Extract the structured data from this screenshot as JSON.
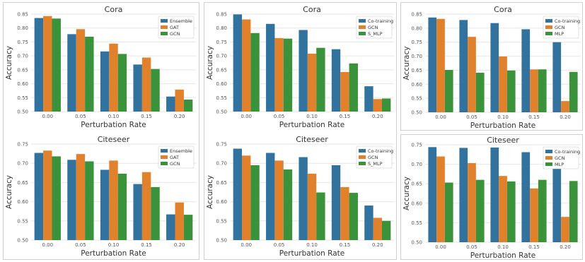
{
  "colors": {
    "blue": "#31729f",
    "orange": "#e1812c",
    "green": "#3a923a",
    "grid": "#e6e6e6",
    "axis": "#555555"
  },
  "chart_data": [
    {
      "type": "bar",
      "title": "Cora",
      "xlabel": "Perturbation Rate",
      "ylabel": "Accuracy",
      "categories": [
        "0.00",
        "0.05",
        "0.10",
        "0.15",
        "0.20"
      ],
      "ylim": [
        0.5,
        0.85
      ],
      "yticks": [
        "0.50",
        "0.55",
        "0.60",
        "0.65",
        "0.70",
        "0.75",
        "0.80",
        "0.85"
      ],
      "legend_position": "top-right",
      "grid": true,
      "series": [
        {
          "name": "Ensemble",
          "values": [
            0.836,
            0.778,
            0.716,
            0.669,
            0.554
          ]
        },
        {
          "name": "GAT",
          "values": [
            0.843,
            0.796,
            0.744,
            0.694,
            0.579
          ]
        },
        {
          "name": "GCN",
          "values": [
            0.834,
            0.769,
            0.707,
            0.653,
            0.543
          ]
        }
      ]
    },
    {
      "type": "bar",
      "title": "Citeseer",
      "xlabel": "Perturbation Rate",
      "ylabel": "Accuracy",
      "categories": [
        "0.00",
        "0.05",
        "0.10",
        "0.15",
        "0.20"
      ],
      "ylim": [
        0.5,
        0.75
      ],
      "yticks": [
        "0.50",
        "0.55",
        "0.60",
        "0.65",
        "0.70",
        "0.75"
      ],
      "legend_position": "top-right",
      "grid": true,
      "series": [
        {
          "name": "Ensemble",
          "values": [
            0.727,
            0.709,
            0.683,
            0.646,
            0.567
          ]
        },
        {
          "name": "GAT",
          "values": [
            0.733,
            0.724,
            0.707,
            0.677,
            0.598
          ]
        },
        {
          "name": "GCN",
          "values": [
            0.718,
            0.705,
            0.673,
            0.638,
            0.566
          ]
        }
      ]
    },
    {
      "type": "bar",
      "title": "Cora",
      "xlabel": "Perturbation Rate",
      "ylabel": "Accuracy",
      "categories": [
        "0.00",
        "0.05",
        "0.10",
        "0.15",
        "0.20"
      ],
      "ylim": [
        0.5,
        0.85
      ],
      "yticks": [
        "0.50",
        "0.55",
        "0.60",
        "0.65",
        "0.70",
        "0.75",
        "0.80",
        "0.85"
      ],
      "legend_position": "top-right",
      "grid": true,
      "series": [
        {
          "name": "Co-training",
          "values": [
            0.849,
            0.815,
            0.793,
            0.724,
            0.591
          ]
        },
        {
          "name": "GCN",
          "values": [
            0.831,
            0.764,
            0.708,
            0.642,
            0.545
          ]
        },
        {
          "name": "S_MLP",
          "values": [
            0.782,
            0.762,
            0.729,
            0.673,
            0.547
          ]
        }
      ]
    },
    {
      "type": "bar",
      "title": "Citeseer",
      "xlabel": "Perturbation Rate",
      "ylabel": "Accuracy",
      "categories": [
        "0.00",
        "0.05",
        "0.10",
        "0.15",
        "0.20"
      ],
      "ylim": [
        0.5,
        0.75
      ],
      "yticks": [
        "0.50",
        "0.55",
        "0.60",
        "0.65",
        "0.70",
        "0.75"
      ],
      "legend_position": "top-right",
      "grid": true,
      "series": [
        {
          "name": "Co-training",
          "values": [
            0.738,
            0.727,
            0.716,
            0.695,
            0.59
          ]
        },
        {
          "name": "GCN",
          "values": [
            0.72,
            0.707,
            0.673,
            0.638,
            0.558
          ]
        },
        {
          "name": "S_MLP",
          "values": [
            0.695,
            0.684,
            0.624,
            0.623,
            0.55
          ]
        }
      ]
    },
    {
      "type": "bar",
      "title": "Cora",
      "xlabel": "Perturbation Rate",
      "ylabel": "Accuracy",
      "categories": [
        "0.00",
        "0.05",
        "0.10",
        "0.15",
        "0.20"
      ],
      "ylim": [
        0.5,
        0.85
      ],
      "yticks": [
        "0.50",
        "0.55",
        "0.60",
        "0.65",
        "0.70",
        "0.75",
        "0.80",
        "0.85"
      ],
      "legend_position": "top-right",
      "grid": true,
      "series": [
        {
          "name": "Co-training",
          "values": [
            0.838,
            0.829,
            0.818,
            0.796,
            0.75
          ]
        },
        {
          "name": "GCN",
          "values": [
            0.833,
            0.769,
            0.699,
            0.653,
            0.54
          ]
        },
        {
          "name": "MLP",
          "values": [
            0.651,
            0.641,
            0.649,
            0.653,
            0.644
          ]
        }
      ]
    },
    {
      "type": "bar",
      "title": "Citeseer",
      "xlabel": "Perturbation Rate",
      "ylabel": "Accuracy",
      "categories": [
        "0.00",
        "0.05",
        "0.10",
        "0.15",
        "0.20"
      ],
      "ylim": [
        0.5,
        0.75
      ],
      "yticks": [
        "0.50",
        "0.55",
        "0.60",
        "0.65",
        "0.70",
        "0.75"
      ],
      "legend_position": "top-right",
      "grid": true,
      "series": [
        {
          "name": "Co-training",
          "values": [
            0.744,
            0.742,
            0.743,
            0.731,
            0.7
          ]
        },
        {
          "name": "GCN",
          "values": [
            0.72,
            0.703,
            0.67,
            0.638,
            0.565
          ]
        },
        {
          "name": "MLP",
          "values": [
            0.653,
            0.66,
            0.656,
            0.66,
            0.657
          ]
        }
      ]
    }
  ]
}
